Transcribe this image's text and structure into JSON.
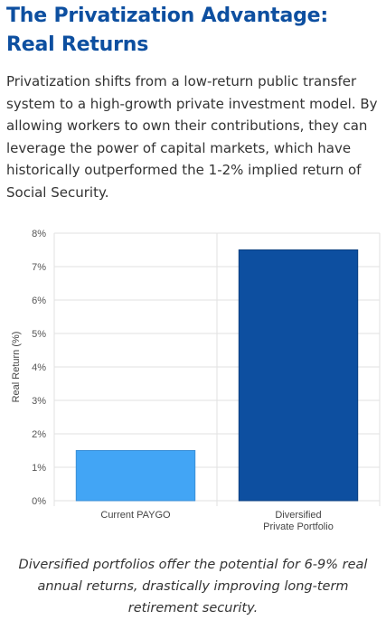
{
  "header": {
    "title": "The Privatization Advantage: Real Returns"
  },
  "intro": {
    "text": "Privatization shifts from a low-return public transfer system to a high-growth private investment model. By allowing workers to own their contributions, they can leverage the power of capital markets, which have historically outperformed the 1-2% implied return of Social Security."
  },
  "chart_data": {
    "type": "bar",
    "categories": [
      "Current PAYGO",
      "Diversified\nPrivate Portfolio"
    ],
    "values": [
      1.5,
      7.5
    ],
    "bar_colors": [
      "#42a5f5",
      "#0d4fa0"
    ],
    "bar_border_colors": [
      "#3b8fd6",
      "#0a3f80"
    ],
    "ylabel": "Real Return (%)",
    "xlabel": "",
    "ylim": [
      0,
      8
    ],
    "yticks": [
      0,
      1,
      2,
      3,
      4,
      5,
      6,
      7,
      8
    ],
    "ytick_suffix": "%",
    "grid": true,
    "legend": "none"
  },
  "caption": {
    "text": "Diversified portfolios offer the potential for 6-9% real annual returns, drastically improving long-term retirement security."
  }
}
